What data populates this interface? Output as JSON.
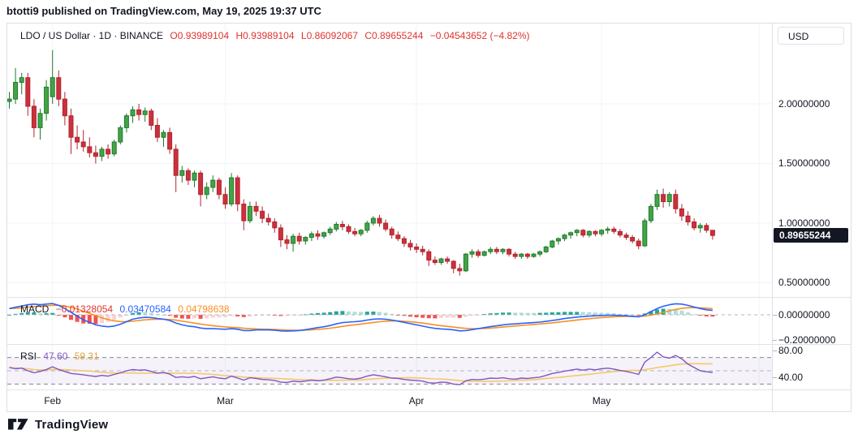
{
  "header": {
    "publish_line": "btotti9 published on TradingView.com, May 19, 2025 19:37 UTC"
  },
  "footer": {
    "brand": "TradingView"
  },
  "price_axis": {
    "currency_button": "USD",
    "tick_labels": [
      "2.00000000",
      "1.50000000",
      "1.00000000",
      "0.50000000"
    ],
    "last_price_label": "0.89655244",
    "last_price_value": 0.89655244,
    "badge_color": "#131722"
  },
  "legend": {
    "title": "LDO / US Dollar · 1D · BINANCE",
    "open": "O0.93989104",
    "high": "H0.93989104",
    "low": "L0.86092067",
    "close": "C0.89655244",
    "change": "−0.04543652 (−4.82%)"
  },
  "macd_legend": {
    "name": "MACD",
    "histogram": "−0.01328054",
    "macd": "0.03470584",
    "signal": "0.04798638"
  },
  "rsi_legend": {
    "name": "RSI",
    "rsi": "47.60",
    "ma": "59.31"
  },
  "chart_data": {
    "type": "candlestick",
    "title": "LDO / US Dollar",
    "interval": "1D",
    "exchange": "BINANCE",
    "price_ticks": [
      2.0,
      1.5,
      1.0,
      0.5
    ],
    "ylim": [
      0.45,
      2.5
    ],
    "months": [
      {
        "label": "Feb",
        "index": 7
      },
      {
        "label": "Mar",
        "index": 35
      },
      {
        "label": "Apr",
        "index": 66
      },
      {
        "label": "May",
        "index": 96
      }
    ],
    "ohlc": [
      [
        2.02,
        2.1,
        1.96,
        2.04
      ],
      [
        2.04,
        2.3,
        2.0,
        2.18
      ],
      [
        2.18,
        2.26,
        2.08,
        2.22
      ],
      [
        2.22,
        2.26,
        1.9,
        1.98
      ],
      [
        1.98,
        2.04,
        1.72,
        1.8
      ],
      [
        1.8,
        1.96,
        1.7,
        1.92
      ],
      [
        1.92,
        2.2,
        1.86,
        2.14
      ],
      [
        2.06,
        2.45,
        2.0,
        2.22
      ],
      [
        2.22,
        2.28,
        1.98,
        2.04
      ],
      [
        2.04,
        2.1,
        1.82,
        1.9
      ],
      [
        1.9,
        1.96,
        1.58,
        1.72
      ],
      [
        1.72,
        1.82,
        1.62,
        1.68
      ],
      [
        1.68,
        1.78,
        1.6,
        1.64
      ],
      [
        1.64,
        1.72,
        1.55,
        1.59
      ],
      [
        1.59,
        1.65,
        1.5,
        1.56
      ],
      [
        1.56,
        1.64,
        1.52,
        1.62
      ],
      [
        1.62,
        1.66,
        1.54,
        1.58
      ],
      [
        1.58,
        1.7,
        1.56,
        1.68
      ],
      [
        1.68,
        1.82,
        1.66,
        1.8
      ],
      [
        1.8,
        1.92,
        1.76,
        1.9
      ],
      [
        1.9,
        1.98,
        1.84,
        1.95
      ],
      [
        1.95,
        2.0,
        1.86,
        1.91
      ],
      [
        1.91,
        1.97,
        1.85,
        1.94
      ],
      [
        1.94,
        1.96,
        1.78,
        1.82
      ],
      [
        1.82,
        1.88,
        1.68,
        1.72
      ],
      [
        1.72,
        1.78,
        1.64,
        1.76
      ],
      [
        1.76,
        1.8,
        1.58,
        1.62
      ],
      [
        1.62,
        1.66,
        1.26,
        1.4
      ],
      [
        1.4,
        1.48,
        1.34,
        1.44
      ],
      [
        1.44,
        1.46,
        1.32,
        1.36
      ],
      [
        1.36,
        1.44,
        1.3,
        1.42
      ],
      [
        1.42,
        1.44,
        1.14,
        1.24
      ],
      [
        1.24,
        1.34,
        1.2,
        1.3
      ],
      [
        1.3,
        1.4,
        1.26,
        1.36
      ],
      [
        1.36,
        1.38,
        1.2,
        1.24
      ],
      [
        1.24,
        1.3,
        1.12,
        1.16
      ],
      [
        1.16,
        1.42,
        1.14,
        1.38
      ],
      [
        1.38,
        1.4,
        1.1,
        1.16
      ],
      [
        1.16,
        1.2,
        0.94,
        1.02
      ],
      [
        1.02,
        1.18,
        1.0,
        1.14
      ],
      [
        1.14,
        1.18,
        1.06,
        1.1
      ],
      [
        1.1,
        1.14,
        1.0,
        1.04
      ],
      [
        1.04,
        1.08,
        0.98,
        1.01
      ],
      [
        1.01,
        1.04,
        0.92,
        0.96
      ],
      [
        0.96,
        0.99,
        0.8,
        0.86
      ],
      [
        0.86,
        0.9,
        0.78,
        0.83
      ],
      [
        0.83,
        0.91,
        0.76,
        0.89
      ],
      [
        0.89,
        0.92,
        0.82,
        0.85
      ],
      [
        0.85,
        0.89,
        0.82,
        0.88
      ],
      [
        0.88,
        0.93,
        0.85,
        0.91
      ],
      [
        0.91,
        0.94,
        0.86,
        0.89
      ],
      [
        0.89,
        0.93,
        0.87,
        0.92
      ],
      [
        0.92,
        0.97,
        0.9,
        0.95
      ],
      [
        0.95,
        1.01,
        0.93,
        0.99
      ],
      [
        0.99,
        1.02,
        0.94,
        0.97
      ],
      [
        0.97,
        0.99,
        0.91,
        0.93
      ],
      [
        0.93,
        0.96,
        0.89,
        0.91
      ],
      [
        0.91,
        0.95,
        0.89,
        0.94
      ],
      [
        0.94,
        1.02,
        0.92,
        1.0
      ],
      [
        1.0,
        1.06,
        0.98,
        1.04
      ],
      [
        1.04,
        1.07,
        0.97,
        1.0
      ],
      [
        1.0,
        1.03,
        0.93,
        0.95
      ],
      [
        0.95,
        0.97,
        0.87,
        0.9
      ],
      [
        0.9,
        0.93,
        0.85,
        0.87
      ],
      [
        0.87,
        0.89,
        0.8,
        0.83
      ],
      [
        0.83,
        0.86,
        0.77,
        0.8
      ],
      [
        0.8,
        0.83,
        0.75,
        0.78
      ],
      [
        0.78,
        0.81,
        0.73,
        0.76
      ],
      [
        0.76,
        0.78,
        0.64,
        0.69
      ],
      [
        0.69,
        0.72,
        0.65,
        0.67
      ],
      [
        0.67,
        0.71,
        0.65,
        0.7
      ],
      [
        0.7,
        0.72,
        0.66,
        0.68
      ],
      [
        0.68,
        0.69,
        0.58,
        0.62
      ],
      [
        0.62,
        0.66,
        0.56,
        0.6
      ],
      [
        0.6,
        0.75,
        0.59,
        0.74
      ],
      [
        0.74,
        0.78,
        0.71,
        0.76
      ],
      [
        0.76,
        0.78,
        0.71,
        0.73
      ],
      [
        0.73,
        0.77,
        0.72,
        0.76
      ],
      [
        0.76,
        0.8,
        0.74,
        0.78
      ],
      [
        0.78,
        0.8,
        0.74,
        0.76
      ],
      [
        0.76,
        0.79,
        0.74,
        0.78
      ],
      [
        0.78,
        0.79,
        0.72,
        0.74
      ],
      [
        0.74,
        0.76,
        0.7,
        0.72
      ],
      [
        0.72,
        0.75,
        0.7,
        0.74
      ],
      [
        0.74,
        0.75,
        0.7,
        0.72
      ],
      [
        0.72,
        0.75,
        0.71,
        0.74
      ],
      [
        0.74,
        0.77,
        0.72,
        0.76
      ],
      [
        0.76,
        0.81,
        0.75,
        0.8
      ],
      [
        0.8,
        0.86,
        0.79,
        0.85
      ],
      [
        0.85,
        0.88,
        0.82,
        0.87
      ],
      [
        0.87,
        0.91,
        0.85,
        0.9
      ],
      [
        0.9,
        0.93,
        0.87,
        0.92
      ],
      [
        0.92,
        0.95,
        0.89,
        0.94
      ],
      [
        0.94,
        0.95,
        0.88,
        0.9
      ],
      [
        0.9,
        0.94,
        0.88,
        0.93
      ],
      [
        0.93,
        0.94,
        0.89,
        0.91
      ],
      [
        0.91,
        0.95,
        0.89,
        0.94
      ],
      [
        0.94,
        0.97,
        0.91,
        0.95
      ],
      [
        0.95,
        0.97,
        0.91,
        0.93
      ],
      [
        0.93,
        0.95,
        0.88,
        0.9
      ],
      [
        0.9,
        0.92,
        0.86,
        0.88
      ],
      [
        0.88,
        0.9,
        0.83,
        0.85
      ],
      [
        0.85,
        0.87,
        0.78,
        0.81
      ],
      [
        0.81,
        1.04,
        0.8,
        1.02
      ],
      [
        1.02,
        1.16,
        1.0,
        1.14
      ],
      [
        1.14,
        1.28,
        1.11,
        1.24
      ],
      [
        1.24,
        1.29,
        1.13,
        1.18
      ],
      [
        1.18,
        1.26,
        1.14,
        1.24
      ],
      [
        1.24,
        1.28,
        1.08,
        1.12
      ],
      [
        1.12,
        1.16,
        1.02,
        1.06
      ],
      [
        1.06,
        1.1,
        0.98,
        1.01
      ],
      [
        1.01,
        1.04,
        0.94,
        0.96
      ],
      [
        0.96,
        1.0,
        0.92,
        0.98
      ],
      [
        0.98,
        1.0,
        0.92,
        0.94
      ],
      [
        0.93989104,
        0.93989104,
        0.86092067,
        0.89655244
      ]
    ],
    "indicators": {
      "macd": {
        "axis_ticks": [
          {
            "label": "0.00000000",
            "v": 0
          },
          {
            "label": "−0.20000000",
            "v": -0.2
          }
        ],
        "signal_alpha": 0.2,
        "current": {
          "histogram": -0.01328054,
          "macd": 0.03470584,
          "signal": 0.04798638
        },
        "macd_line": [
          0.05,
          0.06,
          0.07,
          0.08,
          0.085,
          0.08,
          0.085,
          0.09,
          0.075,
          0.05,
          0.02,
          -0.01,
          -0.04,
          -0.06,
          -0.08,
          -0.09,
          -0.095,
          -0.09,
          -0.075,
          -0.055,
          -0.035,
          -0.025,
          -0.02,
          -0.022,
          -0.03,
          -0.035,
          -0.045,
          -0.065,
          -0.08,
          -0.09,
          -0.095,
          -0.105,
          -0.11,
          -0.11,
          -0.112,
          -0.115,
          -0.11,
          -0.115,
          -0.125,
          -0.125,
          -0.12,
          -0.12,
          -0.12,
          -0.122,
          -0.128,
          -0.13,
          -0.128,
          -0.125,
          -0.118,
          -0.11,
          -0.102,
          -0.095,
          -0.085,
          -0.072,
          -0.062,
          -0.058,
          -0.055,
          -0.05,
          -0.042,
          -0.035,
          -0.032,
          -0.035,
          -0.042,
          -0.05,
          -0.06,
          -0.07,
          -0.08,
          -0.09,
          -0.1,
          -0.108,
          -0.112,
          -0.115,
          -0.12,
          -0.128,
          -0.125,
          -0.118,
          -0.11,
          -0.102,
          -0.094,
          -0.088,
          -0.08,
          -0.075,
          -0.072,
          -0.068,
          -0.065,
          -0.062,
          -0.058,
          -0.052,
          -0.045,
          -0.038,
          -0.03,
          -0.024,
          -0.018,
          -0.014,
          -0.01,
          -0.008,
          -0.006,
          -0.004,
          -0.004,
          -0.006,
          -0.008,
          -0.012,
          -0.016,
          0.0,
          0.025,
          0.05,
          0.068,
          0.08,
          0.088,
          0.085,
          0.075,
          0.062,
          0.05,
          0.04,
          0.0347
        ]
      },
      "rsi": {
        "axis_ticks": [
          {
            "label": "80.00",
            "v": 80
          },
          {
            "label": "40.00",
            "v": 40
          }
        ],
        "bands": [
          70,
          50,
          30
        ],
        "ma_window": 14,
        "current": {
          "rsi": 47.6,
          "ma": 59.31
        },
        "rsi_line": [
          55,
          53,
          54,
          50,
          47,
          49,
          52,
          56,
          52,
          49,
          46,
          45,
          44,
          42.5,
          41.5,
          43,
          42,
          44.5,
          47,
          50,
          52,
          51,
          51.5,
          49,
          46.5,
          47.5,
          45,
          40,
          41,
          40,
          41.5,
          38,
          39.5,
          41,
          39,
          38,
          42,
          39,
          36,
          39.5,
          38.5,
          37,
          36.5,
          35.5,
          33,
          32.5,
          34.5,
          33.5,
          34.5,
          36,
          35,
          36,
          38,
          40.5,
          39.5,
          38,
          37.5,
          39,
          42,
          44,
          42.5,
          41,
          39,
          38.5,
          37,
          36,
          35.5,
          34.5,
          32,
          31.5,
          33,
          32.5,
          30,
          29,
          35,
          37,
          36.5,
          37.5,
          39,
          38.5,
          39.5,
          38,
          37.5,
          39,
          38.5,
          39.5,
          40.5,
          43,
          46,
          47.5,
          49.5,
          51,
          52.5,
          51,
          52.5,
          51.5,
          53,
          54,
          52.5,
          50.5,
          49,
          47,
          44.5,
          63,
          70,
          78,
          71,
          69,
          73,
          68,
          60,
          55,
          50,
          48.5,
          47.6
        ]
      }
    },
    "colors": {
      "candle_up_fill": "#43a447",
      "candle_up_border": "#1e7a2b",
      "candle_down_fill": "#ca313c",
      "candle_down_border": "#b2242f",
      "legend_red": "#df342e",
      "macd_line": "#2962ff",
      "signal_line": "#f89023",
      "hist_pos_grow": "#26a69a",
      "hist_pos_fall": "#afdfd8",
      "hist_neg_grow": "#f4524d",
      "hist_neg_fall": "#fbd1d4",
      "rsi_line": "#7e57c2",
      "rsi_ma_line": "#f3c969",
      "rsi_band_fill": "rgba(126,87,194,0.08)",
      "grid": "#f0f3fa",
      "dashed_gray": "#b2b5be",
      "rsi_dash_outer": "#84878e",
      "rsi_dash_mid": "#b4b7be"
    }
  }
}
